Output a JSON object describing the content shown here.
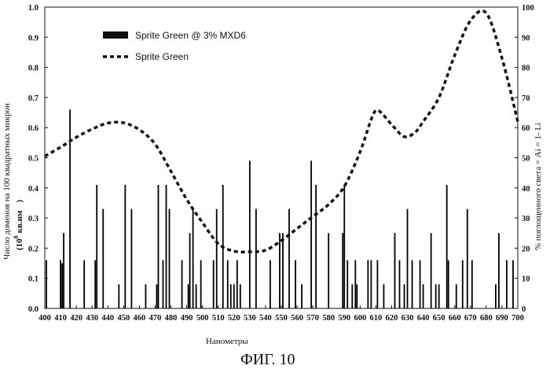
{
  "chart_data": {
    "type": "bar+line",
    "caption": "ФИГ. 10",
    "xlabel": "Нанометры",
    "ylabel_left": "Число доменов на 100 квадратных микрон",
    "ylabel_left_unit_prefix": "(10",
    "ylabel_left_unit_exp": "8",
    "ylabel_left_unit_suffix": "кв.нм",
    "ylabel_left_unit_close": ")",
    "ylabel_right": "% поглощенного света = Ai = 1- Li",
    "x_range": [
      400,
      700
    ],
    "y_left_range": [
      0,
      1
    ],
    "y_right_range": [
      0,
      100
    ],
    "x_ticks": [
      400,
      410,
      420,
      430,
      440,
      450,
      460,
      470,
      480,
      490,
      500,
      510,
      520,
      530,
      540,
      550,
      560,
      570,
      580,
      590,
      600,
      610,
      620,
      630,
      640,
      650,
      660,
      670,
      680,
      690,
      700
    ],
    "y_left_ticks": [
      "0.0",
      "0.1",
      "0.2",
      "0.3",
      "0.4",
      "0.5",
      "0.6",
      "0.7",
      "0.8",
      "0.9",
      "1.0"
    ],
    "y_right_ticks": [
      "0",
      "10",
      "20",
      "30",
      "40",
      "50",
      "60",
      "70",
      "80",
      "90",
      "100"
    ],
    "legend_position": "top-left",
    "series": [
      {
        "name": "Sprite Green @ 3% MXD6",
        "kind": "bar",
        "color": "#000000",
        "points": [
          [
            401,
            0.16
          ],
          [
            410,
            0.16
          ],
          [
            411,
            0.15
          ],
          [
            412,
            0.25
          ],
          [
            416,
            0.66
          ],
          [
            425,
            0.16
          ],
          [
            432,
            0.16
          ],
          [
            433,
            0.41
          ],
          [
            437,
            0.33
          ],
          [
            447,
            0.08
          ],
          [
            451,
            0.41
          ],
          [
            455,
            0.33
          ],
          [
            464,
            0.08
          ],
          [
            471,
            0.08
          ],
          [
            472,
            0.41
          ],
          [
            475,
            0.16
          ],
          [
            477,
            0.41
          ],
          [
            479,
            0.33
          ],
          [
            487,
            0.16
          ],
          [
            491,
            0.08
          ],
          [
            492,
            0.25
          ],
          [
            494,
            0.33
          ],
          [
            496,
            0.08
          ],
          [
            499,
            0.16
          ],
          [
            507,
            0.16
          ],
          [
            509,
            0.33
          ],
          [
            513,
            0.41
          ],
          [
            516,
            0.16
          ],
          [
            518,
            0.08
          ],
          [
            520,
            0.08
          ],
          [
            522,
            0.16
          ],
          [
            524,
            0.08
          ],
          [
            530,
            0.49
          ],
          [
            534,
            0.33
          ],
          [
            543,
            0.16
          ],
          [
            549,
            0.25
          ],
          [
            551,
            0.25
          ],
          [
            555,
            0.33
          ],
          [
            559,
            0.16
          ],
          [
            563,
            0.08
          ],
          [
            569,
            0.49
          ],
          [
            572,
            0.41
          ],
          [
            580,
            0.25
          ],
          [
            589,
            0.25
          ],
          [
            590,
            0.41
          ],
          [
            592,
            0.16
          ],
          [
            595,
            0.08
          ],
          [
            597,
            0.16
          ],
          [
            598,
            0.08
          ],
          [
            605,
            0.16
          ],
          [
            607,
            0.16
          ],
          [
            611,
            0.16
          ],
          [
            615,
            0.08
          ],
          [
            622,
            0.25
          ],
          [
            625,
            0.16
          ],
          [
            628,
            0.08
          ],
          [
            630,
            0.33
          ],
          [
            633,
            0.16
          ],
          [
            638,
            0.16
          ],
          [
            640,
            0.08
          ],
          [
            645,
            0.25
          ],
          [
            648,
            0.08
          ],
          [
            650,
            0.08
          ],
          [
            655,
            0.41
          ],
          [
            656,
            0.16
          ],
          [
            661,
            0.08
          ],
          [
            665,
            0.16
          ],
          [
            668,
            0.33
          ],
          [
            671,
            0.16
          ],
          [
            686,
            0.08
          ],
          [
            688,
            0.25
          ],
          [
            693,
            0.16
          ],
          [
            697,
            0.16
          ]
        ]
      },
      {
        "name": "Sprite Green",
        "kind": "line",
        "style": "dashed",
        "color": "#000000",
        "axis": "right",
        "points": [
          [
            400,
            50.5
          ],
          [
            410,
            53.5
          ],
          [
            420,
            56.8
          ],
          [
            430,
            59.5
          ],
          [
            440,
            61.5
          ],
          [
            450,
            61.6
          ],
          [
            460,
            59.3
          ],
          [
            470,
            54.5
          ],
          [
            480,
            45.5
          ],
          [
            490,
            36.2
          ],
          [
            500,
            28.5
          ],
          [
            510,
            21.5
          ],
          [
            520,
            19.0
          ],
          [
            530,
            18.8
          ],
          [
            540,
            19.3
          ],
          [
            550,
            22.5
          ],
          [
            560,
            26.5
          ],
          [
            570,
            30.5
          ],
          [
            580,
            34.5
          ],
          [
            590,
            40.5
          ],
          [
            600,
            52.0
          ],
          [
            608,
            64.0
          ],
          [
            612,
            65.5
          ],
          [
            620,
            61.0
          ],
          [
            628,
            57.0
          ],
          [
            635,
            58.5
          ],
          [
            640,
            62.0
          ],
          [
            650,
            70.0
          ],
          [
            660,
            84.0
          ],
          [
            670,
            95.5
          ],
          [
            680,
            98.0
          ],
          [
            690,
            83.0
          ],
          [
            700,
            62.0
          ]
        ]
      }
    ]
  }
}
